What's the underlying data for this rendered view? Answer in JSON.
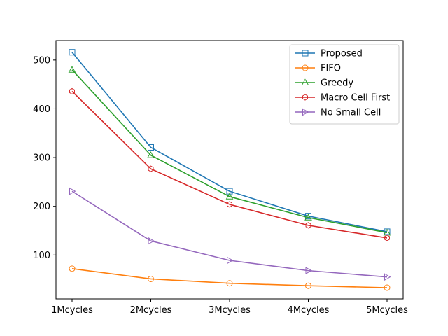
{
  "chart_data": {
    "type": "line",
    "title": "",
    "xlabel": "",
    "ylabel": "",
    "categories": [
      "1Mcycles",
      "2Mcycles",
      "3Mcycles",
      "4Mcycles",
      "5Mcycles"
    ],
    "ylim": [
      10,
      540
    ],
    "yticks": [
      100,
      200,
      300,
      400,
      500
    ],
    "grid": false,
    "legend_position": "top-right",
    "series": [
      {
        "name": "Proposed",
        "color": "#1f77b4",
        "marker": "square",
        "values": [
          516,
          321,
          231,
          180,
          148
        ]
      },
      {
        "name": "FIFO",
        "color": "#ff7f0e",
        "marker": "circle",
        "values": [
          72,
          51,
          42,
          37,
          33
        ]
      },
      {
        "name": "Greedy",
        "color": "#2ca02c",
        "marker": "triangle-up",
        "values": [
          480,
          305,
          220,
          177,
          146
        ]
      },
      {
        "name": "Macro Cell First",
        "color": "#d62728",
        "marker": "hexagon",
        "values": [
          436,
          277,
          204,
          161,
          135
        ]
      },
      {
        "name": "No Small Cell",
        "color": "#9467bd",
        "marker": "triangle-right",
        "values": [
          231,
          129,
          89,
          68,
          55
        ]
      }
    ]
  }
}
